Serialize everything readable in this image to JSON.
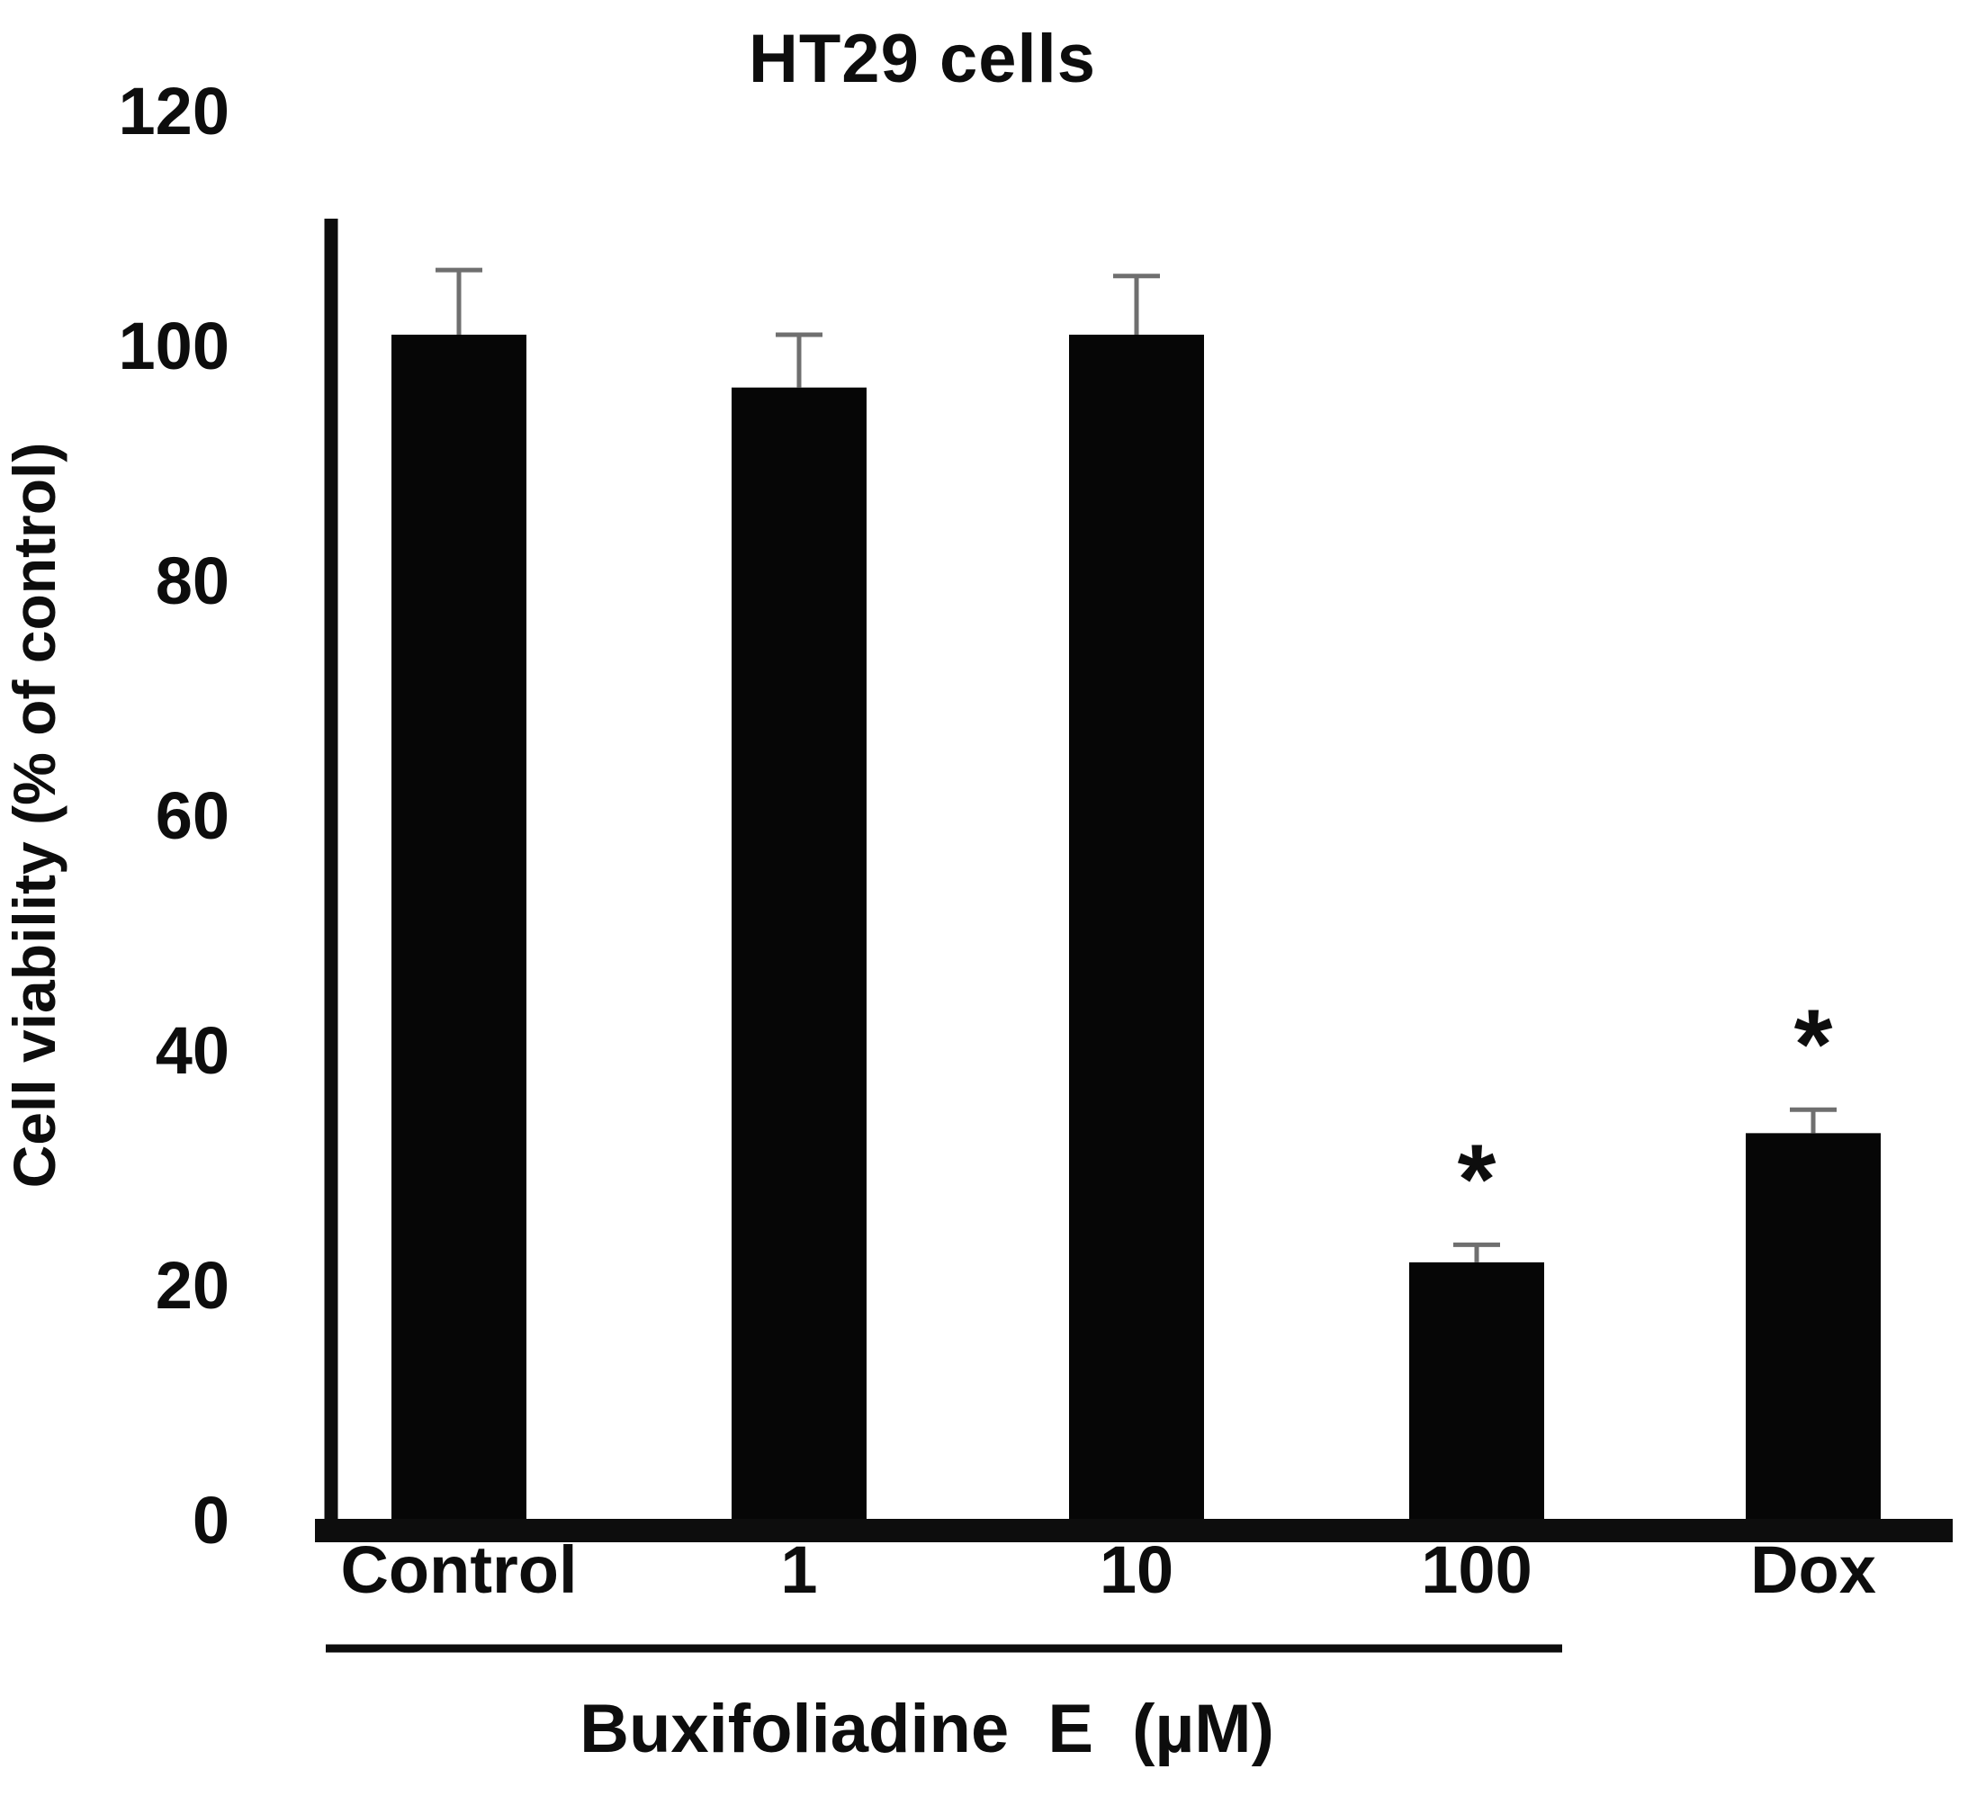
{
  "chart_data": {
    "type": "bar",
    "title": "HT29 cells",
    "ylabel": "Cell viability (% of control)",
    "xlabel": "Buxifoliadine E (µM)",
    "categories": [
      "Control",
      "1",
      "10",
      "100",
      "Dox"
    ],
    "values": [
      101,
      96.5,
      101,
      22,
      33
    ],
    "errors": [
      5.5,
      4.5,
      5,
      1.5,
      2
    ],
    "significance": [
      "",
      "",
      "",
      "*",
      "*"
    ],
    "ylim": [
      0,
      120
    ],
    "yticks": [
      0,
      20,
      40,
      60,
      80,
      100,
      120
    ],
    "grid": false,
    "legend": "none",
    "bar_color": "#060606",
    "axis_color": "#0d0d0d",
    "error_bar_color": "#6f6f6f",
    "text_color": "#0d0d0d",
    "group_label_span": [
      "Control",
      "100"
    ]
  }
}
